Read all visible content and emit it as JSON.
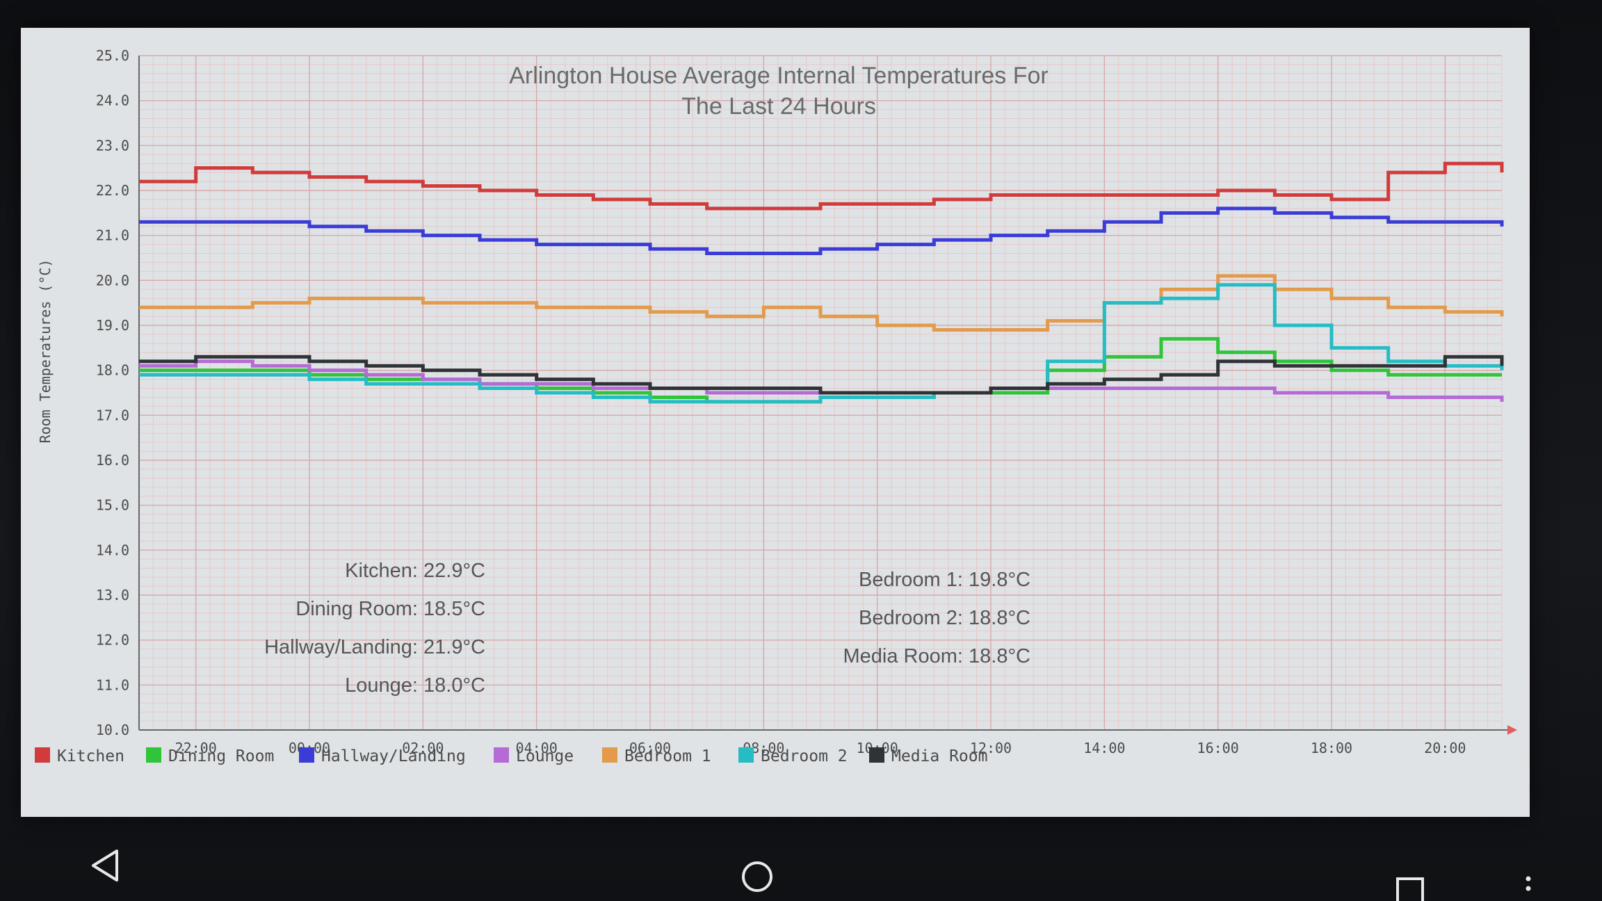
{
  "chart_data": {
    "type": "line",
    "title": [
      "Arlington House Average Internal Temperatures For",
      "The Last 24 Hours"
    ],
    "ylabel": "Room Temperatures (°C)",
    "ylim": [
      10.0,
      25.0
    ],
    "y_ticks": [
      "25.0",
      "24.0",
      "23.0",
      "22.0",
      "21.0",
      "20.0",
      "19.0",
      "18.0",
      "17.0",
      "16.0",
      "15.0",
      "14.0",
      "13.0",
      "12.0",
      "11.0",
      "10.0"
    ],
    "x_ticks": [
      "22:00",
      "00:00",
      "02:00",
      "04:00",
      "06:00",
      "08:00",
      "10:00",
      "12:00",
      "14:00",
      "16:00",
      "18:00",
      "20:00"
    ],
    "x": [
      "21:00",
      "22:00",
      "23:00",
      "00:00",
      "01:00",
      "02:00",
      "03:00",
      "04:00",
      "05:00",
      "06:00",
      "07:00",
      "08:00",
      "09:00",
      "10:00",
      "11:00",
      "12:00",
      "13:00",
      "14:00",
      "15:00",
      "16:00",
      "17:00",
      "18:00",
      "19:00",
      "20:00",
      "21:00"
    ],
    "series": [
      {
        "name": "Kitchen",
        "color": "#d13b3b",
        "values": [
          22.2,
          22.5,
          22.4,
          22.3,
          22.2,
          22.1,
          22.0,
          21.9,
          21.8,
          21.7,
          21.6,
          21.6,
          21.7,
          21.7,
          21.8,
          21.9,
          21.9,
          21.9,
          21.9,
          22.0,
          21.9,
          21.8,
          22.4,
          22.6,
          22.4
        ]
      },
      {
        "name": "Dining Room",
        "color": "#2fc43a",
        "values": [
          18.0,
          18.0,
          18.0,
          17.9,
          17.8,
          17.8,
          17.7,
          17.6,
          17.5,
          17.4,
          17.3,
          17.3,
          17.4,
          17.4,
          17.5,
          17.5,
          18.0,
          18.3,
          18.7,
          18.4,
          18.2,
          18.0,
          17.9,
          17.9,
          17.9
        ]
      },
      {
        "name": "Hallway/Landing",
        "color": "#3b3bd6",
        "values": [
          21.3,
          21.3,
          21.3,
          21.2,
          21.1,
          21.0,
          20.9,
          20.8,
          20.8,
          20.7,
          20.6,
          20.6,
          20.7,
          20.8,
          20.9,
          21.0,
          21.1,
          21.3,
          21.5,
          21.6,
          21.5,
          21.4,
          21.3,
          21.3,
          21.2
        ]
      },
      {
        "name": "Lounge",
        "color": "#b56ad6",
        "values": [
          18.1,
          18.2,
          18.1,
          18.0,
          17.9,
          17.8,
          17.7,
          17.7,
          17.6,
          17.6,
          17.5,
          17.5,
          17.5,
          17.5,
          17.5,
          17.6,
          17.6,
          17.6,
          17.6,
          17.6,
          17.5,
          17.5,
          17.4,
          17.4,
          17.3
        ]
      },
      {
        "name": "Bedroom 1",
        "color": "#e39a4a",
        "values": [
          19.4,
          19.4,
          19.5,
          19.6,
          19.6,
          19.5,
          19.5,
          19.4,
          19.4,
          19.3,
          19.2,
          19.4,
          19.2,
          19.0,
          18.9,
          18.9,
          19.1,
          19.5,
          19.8,
          20.1,
          19.8,
          19.6,
          19.4,
          19.3,
          19.2
        ]
      },
      {
        "name": "Bedroom 2",
        "color": "#25bcc4",
        "values": [
          17.9,
          17.9,
          17.9,
          17.8,
          17.7,
          17.7,
          17.6,
          17.5,
          17.4,
          17.3,
          17.3,
          17.3,
          17.4,
          17.4,
          17.5,
          17.6,
          18.2,
          19.5,
          19.6,
          19.9,
          19.0,
          18.5,
          18.2,
          18.1,
          18.0
        ]
      },
      {
        "name": "Media Room",
        "color": "#2f3336",
        "values": [
          18.2,
          18.3,
          18.3,
          18.2,
          18.1,
          18.0,
          17.9,
          17.8,
          17.7,
          17.6,
          17.6,
          17.6,
          17.5,
          17.5,
          17.5,
          17.6,
          17.7,
          17.8,
          17.9,
          18.2,
          18.1,
          18.1,
          18.1,
          18.3,
          18.1
        ]
      }
    ],
    "annotations_left": [
      {
        "label": "Kitchen:",
        "value": "22.9°C"
      },
      {
        "label": "Dining Room:",
        "value": "18.5°C"
      },
      {
        "label": "Hallway/Landing:",
        "value": "21.9°C"
      },
      {
        "label": "Lounge:",
        "value": "18.0°C"
      }
    ],
    "annotations_right": [
      {
        "label": "Bedroom 1:",
        "value": "19.8°C"
      },
      {
        "label": "Bedroom 2:",
        "value": "18.8°C"
      },
      {
        "label": "Media Room:",
        "value": "18.8°C"
      }
    ],
    "legend_position": "bottom",
    "grid": true
  },
  "navbar": {
    "back_icon": "triangle-back-icon",
    "home_icon": "circle-home-icon",
    "recents_icon": "square-recents-icon",
    "menu_icon": "vertical-dots-icon"
  }
}
